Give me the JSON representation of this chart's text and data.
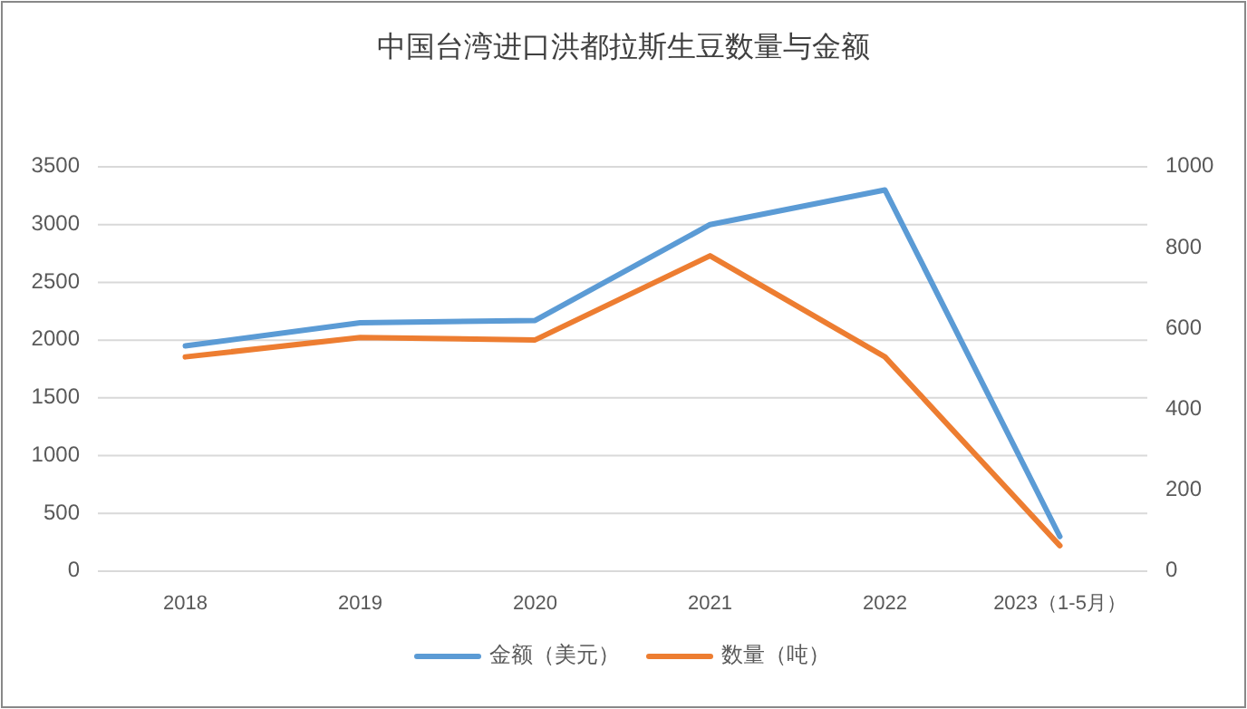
{
  "chart_data": {
    "type": "line",
    "title": "中国台湾进口洪都拉斯生豆数量与金额",
    "categories": [
      "2018",
      "2019",
      "2020",
      "2021",
      "2022",
      "2023（1-5月）"
    ],
    "series": [
      {
        "name": "金额（美元）",
        "color": "#5b9bd5",
        "values": [
          1950,
          2150,
          2170,
          3000,
          3300,
          300
        ]
      },
      {
        "name": "数量（吨）",
        "color": "#ed7d31",
        "axis": "y2",
        "values": [
          530,
          578,
          572,
          780,
          530,
          63
        ]
      }
    ],
    "ylim": [
      0,
      3500
    ],
    "yticks": [
      0,
      500,
      1000,
      1500,
      2000,
      2500,
      3000,
      3500
    ],
    "y2lim": [
      0,
      1000
    ],
    "y2ticks": [
      0,
      200,
      400,
      600,
      800,
      1000
    ],
    "grid": "y",
    "legend": "bottom",
    "marker": "none"
  }
}
